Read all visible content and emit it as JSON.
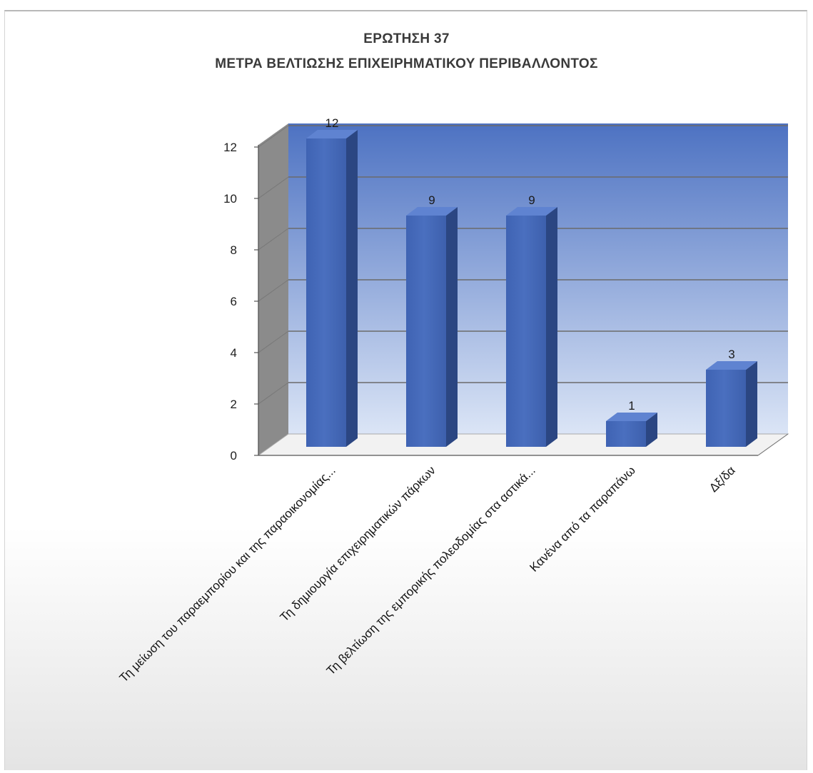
{
  "chart_data": {
    "type": "bar",
    "title": "ΕΡΩΤΗΣΗ 37",
    "subtitle": "ΜΕΤΡΑ ΒΕΛΤΙΩΣΗΣ ΕΠΙΧΕΙΡΗΜΑΤΙΚΟΥ ΠΕΡΙΒΑΛΛΟΝΤΟΣ",
    "categories": [
      "Τη μείωση του παραεμπορίου και της παραοικονομίας...",
      "Τη δημιουργία επιχειρηματικών πάρκων",
      "Τη βελτίωση της εμπορικής πολεοδομίας στα αστικά...",
      "Κανένα από τα παραπάνω",
      "Δξ/δα"
    ],
    "values": [
      12,
      9,
      9,
      1,
      3
    ],
    "data_labels": [
      "12",
      "9",
      "9",
      "1",
      "3"
    ],
    "ylim": [
      0,
      12
    ],
    "yticks": [
      "0",
      "2",
      "4",
      "6",
      "8",
      "10",
      "12"
    ],
    "grid": true,
    "legend": "none",
    "xlabel": "",
    "ylabel": "",
    "colors": {
      "bar_front": "#4a6fbf",
      "bar_side": "#2b4682",
      "bar_top": "#5f83d1",
      "back_wall_top": "#4d72c2",
      "back_wall_bottom": "#dbe5f6",
      "side_wall": "#8b8b8b",
      "floor": "#f2f2f2",
      "gridline": "#6b6b6b"
    }
  }
}
